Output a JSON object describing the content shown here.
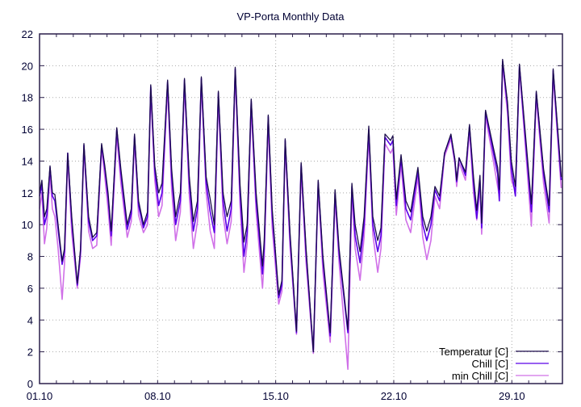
{
  "chart_data": {
    "type": "line",
    "title": "VP-Porta Monthly Data",
    "xlabel": "",
    "ylabel": "",
    "xlim": [
      0,
      31
    ],
    "ylim": [
      0,
      22
    ],
    "grid": true,
    "legend_position": "bottom-right",
    "y_ticks": [
      0,
      2,
      4,
      6,
      8,
      10,
      12,
      14,
      16,
      18,
      20,
      22
    ],
    "y_tick_labels": [
      "0",
      "2",
      "4",
      "6",
      "8",
      "10",
      "12",
      "14",
      "16",
      "18",
      "20",
      "22"
    ],
    "x_ticks": [
      0,
      7,
      14,
      21,
      28
    ],
    "x_tick_labels": [
      "01.10",
      "08.10",
      "15.10",
      "22.10",
      "29.10"
    ],
    "x_unit": "days since 01.10",
    "x": [
      0,
      0.14,
      0.29,
      0.43,
      0.62,
      0.76,
      0.91,
      1.1,
      1.34,
      1.48,
      1.67,
      1.91,
      2.24,
      2.43,
      2.63,
      2.91,
      3.15,
      3.39,
      3.68,
      3.87,
      4.06,
      4.25,
      4.58,
      4.82,
      5.2,
      5.44,
      5.63,
      5.87,
      6.16,
      6.4,
      6.59,
      6.83,
      7.06,
      7.26,
      7.59,
      7.83,
      8.07,
      8.35,
      8.59,
      8.88,
      9.12,
      9.36,
      9.59,
      9.88,
      10.12,
      10.36,
      10.6,
      10.88,
      11.12,
      11.36,
      11.6,
      11.89,
      12.12,
      12.31,
      12.55,
      12.84,
      13.22,
      13.32,
      13.56,
      13.79,
      14.18,
      14.37,
      14.56,
      14.85,
      15.23,
      15.51,
      15.8,
      16.23,
      16.52,
      16.8,
      17.23,
      17.52,
      17.76,
      18.28,
      18.52,
      18.71,
      19.0,
      19.24,
      19.52,
      19.76,
      20.05,
      20.24,
      20.48,
      20.81,
      20.95,
      21.15,
      21.43,
      21.72,
      22.0,
      22.43,
      22.72,
      22.96,
      23.2,
      23.44,
      23.72,
      24.01,
      24.39,
      24.63,
      24.73,
      24.87,
      25.25,
      25.49,
      25.73,
      25.92,
      26.11,
      26.21,
      26.44,
      26.87,
      27.16,
      27.26,
      27.45,
      27.74,
      27.97,
      28.21,
      28.45,
      28.78,
      29.16,
      29.45,
      29.88,
      30.21,
      30.45,
      30.84,
      30.93
    ],
    "series": [
      {
        "name": "Temperatur [C]",
        "color": "#1a0b4a",
        "values": [
          12.0,
          12.8,
          10.5,
          11.0,
          13.7,
          12.0,
          11.9,
          10.0,
          7.7,
          8.5,
          14.5,
          10.5,
          6.3,
          8.5,
          15.1,
          10.5,
          9.2,
          9.5,
          15.1,
          13.7,
          12.0,
          9.6,
          16.1,
          13.5,
          10.0,
          11.0,
          15.7,
          11.5,
          10.0,
          10.8,
          18.8,
          13.7,
          12.0,
          12.6,
          19.1,
          13.5,
          10.5,
          12.0,
          19.2,
          13.0,
          10.2,
          11.5,
          19.3,
          13.0,
          11.6,
          10.0,
          18.4,
          12.0,
          10.5,
          11.5,
          19.9,
          12.5,
          8.9,
          10.0,
          17.9,
          12.0,
          7.4,
          9.0,
          16.9,
          11.0,
          5.6,
          6.5,
          15.4,
          9.5,
          3.3,
          13.9,
          8.5,
          2.0,
          12.8,
          8.0,
          3.2,
          12.2,
          8.5,
          3.4,
          12.6,
          10.0,
          8.3,
          10.5,
          16.2,
          10.5,
          9.0,
          9.8,
          15.7,
          15.3,
          15.6,
          11.6,
          14.4,
          11.5,
          10.8,
          13.6,
          10.5,
          9.6,
          10.5,
          12.4,
          11.8,
          14.5,
          15.7,
          14.1,
          12.8,
          14.2,
          13.3,
          16.3,
          13.0,
          10.9,
          13.1,
          10.1,
          17.2,
          15.0,
          13.6,
          12.2,
          20.4,
          17.7,
          14.0,
          12.4,
          20.1,
          16.0,
          11.3,
          18.4,
          13.5,
          11.2,
          19.8,
          14.3,
          13.0
        ]
      },
      {
        "name": "Chill [C]",
        "color": "#5a00e8",
        "values": [
          11.8,
          12.5,
          10.0,
          10.6,
          13.6,
          11.8,
          11.5,
          9.7,
          7.5,
          8.3,
          14.5,
          10.2,
          6.2,
          8.3,
          15.0,
          10.2,
          9.0,
          9.3,
          15.0,
          13.5,
          11.7,
          9.3,
          16.0,
          13.2,
          9.7,
          10.7,
          15.6,
          11.2,
          9.8,
          10.5,
          18.7,
          13.4,
          11.2,
          12.0,
          19.0,
          13.0,
          10.0,
          11.5,
          19.1,
          12.6,
          9.6,
          11.0,
          19.2,
          12.6,
          10.8,
          9.5,
          18.3,
          11.5,
          9.6,
          11.0,
          19.8,
          12.0,
          8.0,
          9.5,
          17.8,
          11.5,
          6.9,
          8.5,
          16.8,
          10.6,
          5.4,
          6.2,
          15.3,
          9.2,
          3.2,
          13.8,
          8.2,
          2.0,
          12.7,
          7.7,
          3.0,
          12.0,
          8.2,
          3.2,
          12.4,
          9.3,
          7.6,
          10.0,
          16.0,
          10.0,
          8.3,
          9.3,
          15.5,
          15.0,
          15.3,
          11.2,
          14.2,
          11.0,
          10.3,
          13.4,
          10.0,
          9.0,
          10.0,
          12.2,
          11.5,
          14.5,
          15.6,
          14.0,
          12.7,
          14.2,
          13.1,
          16.2,
          12.6,
          10.4,
          12.8,
          9.8,
          17.1,
          14.7,
          13.2,
          11.5,
          20.3,
          17.5,
          13.5,
          11.8,
          20.0,
          15.7,
          10.8,
          18.3,
          13.2,
          10.8,
          19.7,
          14.0,
          12.8
        ]
      },
      {
        "name": "min Chill [C]",
        "color": "#d070e8",
        "values": [
          11.0,
          12.0,
          8.8,
          9.8,
          13.2,
          11.0,
          10.5,
          8.5,
          5.3,
          7.5,
          14.2,
          9.5,
          6.0,
          8.0,
          14.8,
          9.6,
          8.5,
          8.7,
          14.8,
          13.0,
          11.0,
          8.7,
          15.6,
          12.6,
          9.2,
          10.2,
          15.3,
          10.6,
          9.5,
          10.0,
          18.4,
          12.8,
          10.5,
          11.2,
          18.7,
          12.2,
          9.0,
          10.8,
          18.8,
          11.8,
          8.5,
          10.2,
          18.9,
          12.0,
          9.6,
          8.5,
          18.0,
          10.6,
          8.8,
          10.2,
          19.5,
          11.2,
          7.0,
          8.8,
          17.4,
          10.8,
          6.0,
          7.8,
          16.4,
          9.8,
          5.0,
          5.8,
          15.0,
          8.6,
          3.1,
          13.4,
          7.6,
          1.9,
          12.4,
          7.0,
          2.6,
          11.6,
          7.6,
          0.9,
          12.0,
          8.5,
          6.5,
          9.2,
          15.6,
          9.4,
          7.0,
          8.5,
          15.1,
          14.5,
          14.8,
          10.6,
          13.8,
          10.3,
          9.5,
          13.0,
          9.2,
          7.8,
          9.0,
          11.8,
          11.0,
          14.3,
          15.4,
          13.8,
          12.4,
          13.9,
          12.8,
          15.9,
          12.0,
          10.3,
          12.3,
          9.4,
          16.8,
          14.2,
          12.4,
          11.8,
          20.1,
          17.0,
          12.8,
          12.1,
          19.8,
          15.2,
          9.9,
          18.0,
          12.6,
          10.1,
          19.4,
          13.5,
          12.3
        ]
      }
    ]
  }
}
